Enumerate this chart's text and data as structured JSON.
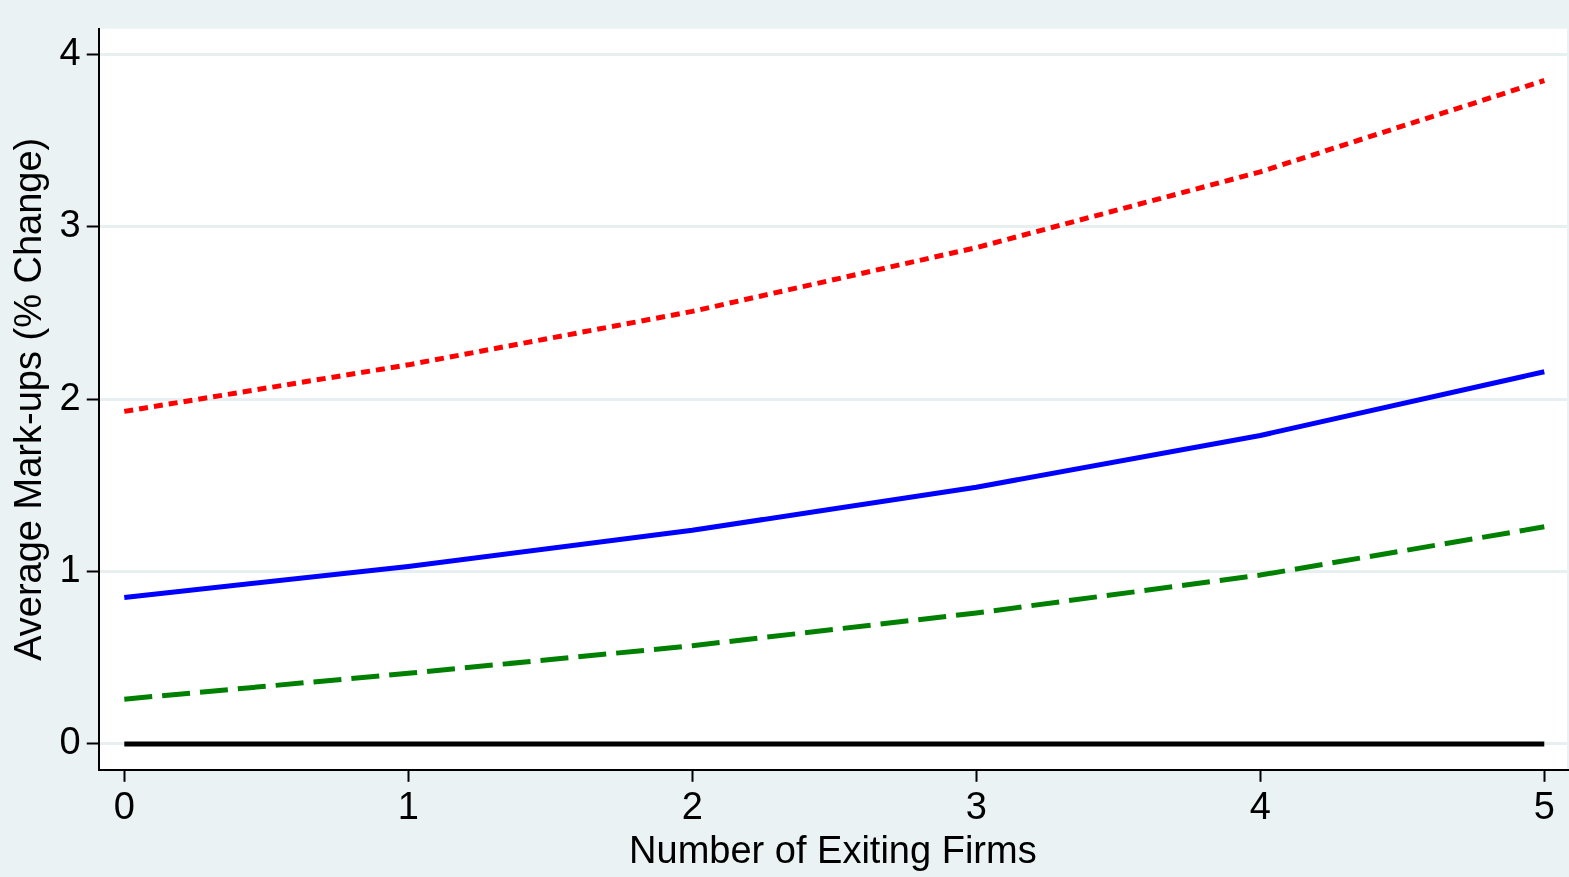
{
  "chart_data": {
    "type": "line",
    "xlabel": "Number of Exiting Firms",
    "ylabel": "Average Mark-ups (% Change)",
    "x": [
      0,
      1,
      2,
      3,
      4,
      5
    ],
    "series": [
      {
        "color": "#ff0000",
        "line_style": "dotted",
        "values": [
          1.93,
          2.2,
          2.51,
          2.88,
          3.32,
          3.85
        ]
      },
      {
        "color": "#0000ff",
        "line_style": "solid",
        "values": [
          0.85,
          1.03,
          1.24,
          1.49,
          1.79,
          2.16
        ]
      },
      {
        "color": "#008000",
        "line_style": "dashed",
        "values": [
          0.26,
          0.41,
          0.57,
          0.76,
          0.98,
          1.26
        ]
      },
      {
        "color": "#000000",
        "line_style": "solid",
        "values": [
          0,
          0,
          0,
          0,
          0,
          0
        ]
      }
    ],
    "xlim": [
      -0.09,
      5.08
    ],
    "ylim": [
      -0.15,
      4.15
    ],
    "xticks": [
      0,
      1,
      2,
      3,
      4,
      5
    ],
    "yticks": [
      0,
      1,
      2,
      3,
      4
    ],
    "grid": "y",
    "legend": false,
    "marker": "none"
  }
}
